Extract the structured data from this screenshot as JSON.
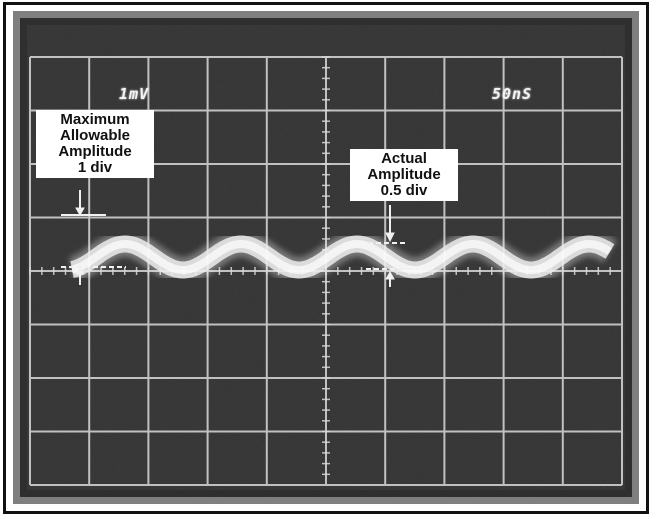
{
  "scope": {
    "volts_per_div": "1mV",
    "time_per_div": "50nS"
  },
  "callouts": {
    "max": [
      "Maximum",
      "Allowable",
      "Amplitude",
      "1 div"
    ],
    "actual": [
      "Actual",
      "Amplitude",
      "0.5 div"
    ]
  },
  "colors": {
    "screen_bg": "#3a3a3a",
    "graticule": "#d8d8d8",
    "trace": "#e8e8e8",
    "frame": "#111111"
  }
}
